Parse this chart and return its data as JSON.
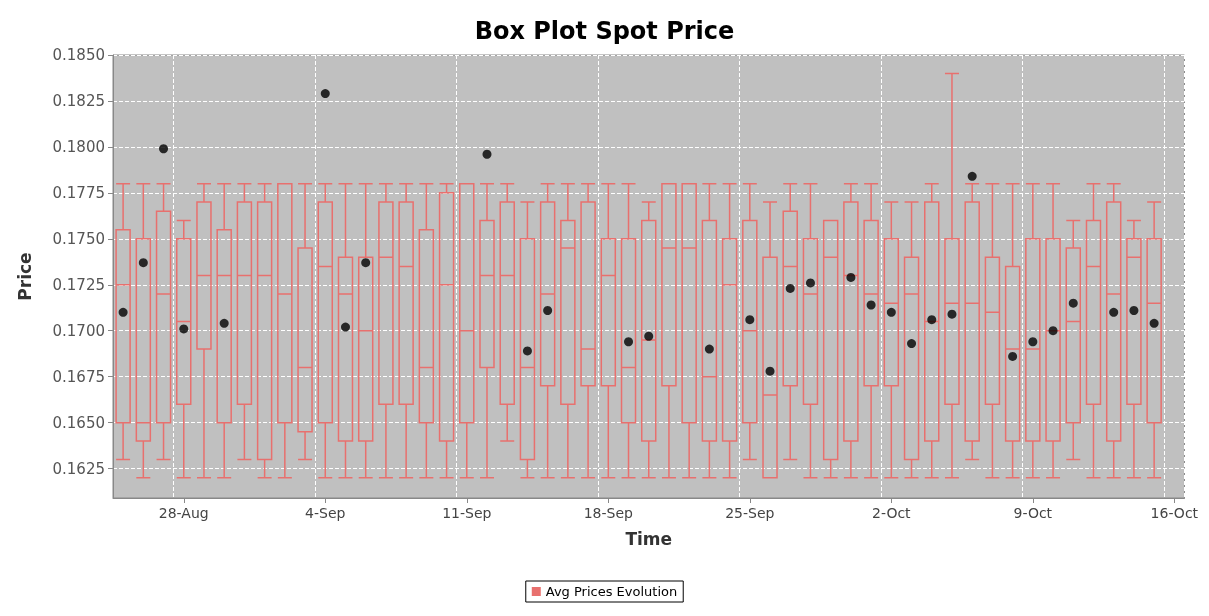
{
  "chart_data": {
    "type": "box",
    "title": "Box Plot Spot Price",
    "xlabel": "Time",
    "ylabel": "Price",
    "categories": [
      null,
      null,
      null,
      "28-Aug",
      null,
      null,
      null,
      null,
      null,
      null,
      "4-Sep",
      null,
      null,
      null,
      null,
      null,
      null,
      "11-Sep",
      null,
      null,
      null,
      null,
      null,
      null,
      "18-Sep",
      null,
      null,
      null,
      null,
      null,
      null,
      "25-Sep",
      null,
      null,
      null,
      null,
      null,
      null,
      "2-Oct",
      null,
      null,
      null,
      null,
      null,
      null,
      "9-Oct",
      null,
      null,
      null,
      null,
      null,
      null,
      "16-Oct"
    ],
    "series": [
      {
        "name": "Avg Prices Evolution",
        "color": "#e8706e",
        "boxes": [
          {
            "low": 0.163,
            "q1": 0.165,
            "median": 0.1725,
            "q3": 0.1755,
            "high": 0.178,
            "mean": 0.171
          },
          {
            "low": 0.162,
            "q1": 0.164,
            "median": 0.165,
            "q3": 0.175,
            "high": 0.178,
            "mean": 0.1737
          },
          {
            "low": 0.163,
            "q1": 0.165,
            "median": 0.172,
            "q3": 0.1765,
            "high": 0.178,
            "mean": 0.1799
          },
          {
            "low": 0.162,
            "q1": 0.166,
            "median": 0.1705,
            "q3": 0.175,
            "high": 0.176,
            "mean": 0.1701
          },
          {
            "low": 0.162,
            "q1": 0.169,
            "median": 0.173,
            "q3": 0.177,
            "high": 0.178
          },
          {
            "low": 0.162,
            "q1": 0.165,
            "median": 0.173,
            "q3": 0.1755,
            "high": 0.178,
            "mean": 0.1704
          },
          {
            "low": 0.163,
            "q1": 0.166,
            "median": 0.173,
            "q3": 0.177,
            "high": 0.178
          },
          {
            "low": 0.162,
            "q1": 0.163,
            "median": 0.173,
            "q3": 0.177,
            "high": 0.178
          },
          {
            "low": 0.162,
            "q1": 0.165,
            "median": 0.172,
            "q3": 0.178,
            "high": 0.178
          },
          {
            "low": 0.163,
            "q1": 0.1645,
            "median": 0.168,
            "q3": 0.1745,
            "high": 0.178
          },
          {
            "low": 0.162,
            "q1": 0.165,
            "median": 0.1735,
            "q3": 0.177,
            "high": 0.178,
            "mean": 0.1829
          },
          {
            "low": 0.162,
            "q1": 0.164,
            "median": 0.172,
            "q3": 0.174,
            "high": 0.178,
            "mean": 0.1702
          },
          {
            "low": 0.162,
            "q1": 0.164,
            "median": 0.17,
            "q3": 0.174,
            "high": 0.178,
            "mean": 0.1737
          },
          {
            "low": 0.162,
            "q1": 0.166,
            "median": 0.174,
            "q3": 0.177,
            "high": 0.178
          },
          {
            "low": 0.162,
            "q1": 0.166,
            "median": 0.1735,
            "q3": 0.177,
            "high": 0.178
          },
          {
            "low": 0.162,
            "q1": 0.165,
            "median": 0.168,
            "q3": 0.1755,
            "high": 0.178
          },
          {
            "low": 0.162,
            "q1": 0.164,
            "median": 0.1725,
            "q3": 0.1775,
            "high": 0.178
          },
          {
            "low": 0.162,
            "q1": 0.165,
            "median": 0.17,
            "q3": 0.178,
            "high": 0.178
          },
          {
            "low": 0.162,
            "q1": 0.168,
            "median": 0.173,
            "q3": 0.176,
            "high": 0.178,
            "mean": 0.1796
          },
          {
            "low": 0.164,
            "q1": 0.166,
            "median": 0.173,
            "q3": 0.177,
            "high": 0.178
          },
          {
            "low": 0.162,
            "q1": 0.163,
            "median": 0.168,
            "q3": 0.175,
            "high": 0.177,
            "mean": 0.1689
          },
          {
            "low": 0.162,
            "q1": 0.167,
            "median": 0.172,
            "q3": 0.177,
            "high": 0.178,
            "mean": 0.1711
          },
          {
            "low": 0.162,
            "q1": 0.166,
            "median": 0.1745,
            "q3": 0.176,
            "high": 0.178
          },
          {
            "low": 0.162,
            "q1": 0.167,
            "median": 0.169,
            "q3": 0.177,
            "high": 0.178
          },
          {
            "low": 0.162,
            "q1": 0.167,
            "median": 0.173,
            "q3": 0.175,
            "high": 0.178
          },
          {
            "low": 0.162,
            "q1": 0.165,
            "median": 0.168,
            "q3": 0.175,
            "high": 0.178,
            "mean": 0.1694
          },
          {
            "low": 0.162,
            "q1": 0.164,
            "median": 0.1695,
            "q3": 0.176,
            "high": 0.177,
            "mean": 0.1697
          },
          {
            "low": 0.162,
            "q1": 0.167,
            "median": 0.1745,
            "q3": 0.178,
            "high": 0.178
          },
          {
            "low": 0.162,
            "q1": 0.165,
            "median": 0.1745,
            "q3": 0.178,
            "high": 0.178
          },
          {
            "low": 0.162,
            "q1": 0.164,
            "median": 0.1675,
            "q3": 0.176,
            "high": 0.178,
            "mean": 0.169
          },
          {
            "low": 0.162,
            "q1": 0.164,
            "median": 0.1725,
            "q3": 0.175,
            "high": 0.178
          },
          {
            "low": 0.163,
            "q1": 0.165,
            "median": 0.17,
            "q3": 0.176,
            "high": 0.178,
            "mean": 0.1706
          },
          {
            "low": 0.162,
            "q1": 0.162,
            "median": 0.1665,
            "q3": 0.174,
            "high": 0.177,
            "mean": 0.1678
          },
          {
            "low": 0.163,
            "q1": 0.167,
            "median": 0.1735,
            "q3": 0.1765,
            "high": 0.178,
            "mean": 0.1723
          },
          {
            "low": 0.162,
            "q1": 0.166,
            "median": 0.172,
            "q3": 0.175,
            "high": 0.178,
            "mean": 0.1726
          },
          {
            "low": 0.162,
            "q1": 0.163,
            "median": 0.174,
            "q3": 0.176,
            "high": 0.176
          },
          {
            "low": 0.162,
            "q1": 0.164,
            "median": 0.173,
            "q3": 0.177,
            "high": 0.178,
            "mean": 0.1729
          },
          {
            "low": 0.162,
            "q1": 0.167,
            "median": 0.172,
            "q3": 0.176,
            "high": 0.178,
            "mean": 0.1714
          },
          {
            "low": 0.162,
            "q1": 0.167,
            "median": 0.1715,
            "q3": 0.175,
            "high": 0.177,
            "mean": 0.171
          },
          {
            "low": 0.162,
            "q1": 0.163,
            "median": 0.172,
            "q3": 0.174,
            "high": 0.177,
            "mean": 0.1693
          },
          {
            "low": 0.162,
            "q1": 0.164,
            "median": 0.1705,
            "q3": 0.177,
            "high": 0.178,
            "mean": 0.1706
          },
          {
            "low": 0.162,
            "q1": 0.166,
            "median": 0.1715,
            "q3": 0.175,
            "high": 0.184,
            "mean": 0.1709
          },
          {
            "low": 0.163,
            "q1": 0.164,
            "median": 0.1715,
            "q3": 0.177,
            "high": 0.178,
            "mean": 0.1784
          },
          {
            "low": 0.162,
            "q1": 0.166,
            "median": 0.171,
            "q3": 0.174,
            "high": 0.178
          },
          {
            "low": 0.162,
            "q1": 0.164,
            "median": 0.169,
            "q3": 0.1735,
            "high": 0.178,
            "mean": 0.1686
          },
          {
            "low": 0.162,
            "q1": 0.164,
            "median": 0.169,
            "q3": 0.175,
            "high": 0.178,
            "mean": 0.1694
          },
          {
            "low": 0.162,
            "q1": 0.164,
            "median": 0.17,
            "q3": 0.175,
            "high": 0.178,
            "mean": 0.17
          },
          {
            "low": 0.163,
            "q1": 0.165,
            "median": 0.1705,
            "q3": 0.1745,
            "high": 0.176,
            "mean": 0.1715
          },
          {
            "low": 0.162,
            "q1": 0.166,
            "median": 0.1735,
            "q3": 0.176,
            "high": 0.178
          },
          {
            "low": 0.162,
            "q1": 0.164,
            "median": 0.172,
            "q3": 0.177,
            "high": 0.178,
            "mean": 0.171
          },
          {
            "low": 0.162,
            "q1": 0.166,
            "median": 0.174,
            "q3": 0.175,
            "high": 0.176,
            "mean": 0.1711
          },
          {
            "low": 0.162,
            "q1": 0.165,
            "median": 0.1715,
            "q3": 0.175,
            "high": 0.177,
            "mean": 0.1704
          },
          null
        ]
      }
    ],
    "ylim": [
      0.1609,
      0.185
    ],
    "yticks": [
      0.1625,
      {
        "value": 0.165,
        "label": "0.1650"
      },
      0.1675,
      {
        "value": 0.17,
        "label": "0.1700"
      },
      0.1725,
      {
        "value": 0.175,
        "label": "0.1750"
      },
      0.1775,
      {
        "value": 0.18,
        "label": "0.1800"
      },
      0.1825,
      {
        "value": 0.185,
        "label": "0.1850"
      }
    ],
    "grid": true,
    "legend": "bottom"
  }
}
